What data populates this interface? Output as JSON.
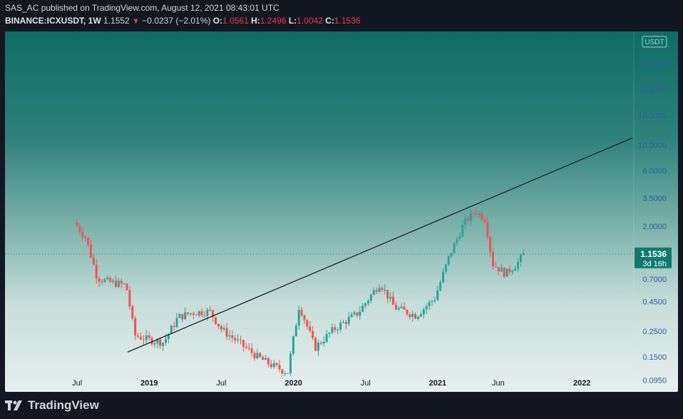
{
  "header": {
    "line1": "SAS_AC published on TradingView.com, August 12, 2021 08:43:01 UTC",
    "symbol": "BINANCE:ICXUSDT, 1W",
    "price": "1.1552",
    "change": "−0.0237 (−2.01%)",
    "o_label": "O:",
    "o_value": "1.0561",
    "h_label": "H:",
    "h_value": "1.2496",
    "l_label": "L:",
    "l_value": "1.0042",
    "c_label": "C:",
    "c_value": "1.1536"
  },
  "footer": {
    "brand": "TradingView"
  },
  "colors": {
    "up": "#26a69a",
    "down": "#ef5350",
    "trend": "#1e222d",
    "axis_text": "#2a5f9e"
  },
  "chart_data": {
    "type": "candlestick",
    "scale": "log",
    "currency_label": "USDT",
    "y_ticks": [
      50,
      30,
      18,
      10,
      6,
      3.5,
      2,
      0.7,
      0.45,
      0.25,
      0.15,
      0.095
    ],
    "y_tick_labels": [
      "50.0000",
      "30.0000",
      "18.0000",
      "10.0000",
      "6.0000",
      "3.5000",
      "2.0000",
      "0.7000",
      "0.4500",
      "0.2500",
      "0.1500",
      "0.0950"
    ],
    "ylim": [
      0.075,
      95
    ],
    "x_ticks": [
      {
        "label": "Jul",
        "t": 2018.5,
        "major": false
      },
      {
        "label": "2019",
        "t": 2019.0,
        "major": true
      },
      {
        "label": "Jul",
        "t": 2019.5,
        "major": false
      },
      {
        "label": "2020",
        "t": 2020.0,
        "major": true
      },
      {
        "label": "Jul",
        "t": 2020.5,
        "major": false
      },
      {
        "label": "2021",
        "t": 2021.0,
        "major": true
      },
      {
        "label": "Jun",
        "t": 2021.42,
        "major": false
      },
      {
        "label": "2022",
        "t": 2022.0,
        "major": true
      }
    ],
    "xlim": [
      2018.0,
      2022.35
    ],
    "last_price": {
      "value": 1.1536,
      "label": "1.1536",
      "countdown": "3d 16h"
    },
    "trendline": [
      {
        "t": 2018.85,
        "v": 0.165
      },
      {
        "t": 2022.35,
        "v": 11.5
      }
    ],
    "anchors": [
      {
        "t": 2018.48,
        "v": 2.15
      },
      {
        "t": 2018.56,
        "v": 1.6
      },
      {
        "t": 2018.64,
        "v": 0.72
      },
      {
        "t": 2018.72,
        "v": 0.66
      },
      {
        "t": 2018.84,
        "v": 0.62
      },
      {
        "t": 2018.9,
        "v": 0.23
      },
      {
        "t": 2019.0,
        "v": 0.21
      },
      {
        "t": 2019.1,
        "v": 0.2
      },
      {
        "t": 2019.2,
        "v": 0.33
      },
      {
        "t": 2019.3,
        "v": 0.36
      },
      {
        "t": 2019.42,
        "v": 0.37
      },
      {
        "t": 2019.5,
        "v": 0.26
      },
      {
        "t": 2019.62,
        "v": 0.2
      },
      {
        "t": 2019.75,
        "v": 0.15
      },
      {
        "t": 2019.86,
        "v": 0.125
      },
      {
        "t": 2019.96,
        "v": 0.11
      },
      {
        "t": 2020.04,
        "v": 0.42
      },
      {
        "t": 2020.15,
        "v": 0.18
      },
      {
        "t": 2020.28,
        "v": 0.26
      },
      {
        "t": 2020.45,
        "v": 0.36
      },
      {
        "t": 2020.6,
        "v": 0.65
      },
      {
        "t": 2020.7,
        "v": 0.4
      },
      {
        "t": 2020.85,
        "v": 0.34
      },
      {
        "t": 2020.98,
        "v": 0.48
      },
      {
        "t": 2021.08,
        "v": 1.1
      },
      {
        "t": 2021.18,
        "v": 2.1
      },
      {
        "t": 2021.26,
        "v": 2.7
      },
      {
        "t": 2021.33,
        "v": 2.3
      },
      {
        "t": 2021.38,
        "v": 0.95
      },
      {
        "t": 2021.47,
        "v": 0.78
      },
      {
        "t": 2021.55,
        "v": 0.95
      },
      {
        "t": 2021.6,
        "v": 1.1536
      }
    ]
  }
}
